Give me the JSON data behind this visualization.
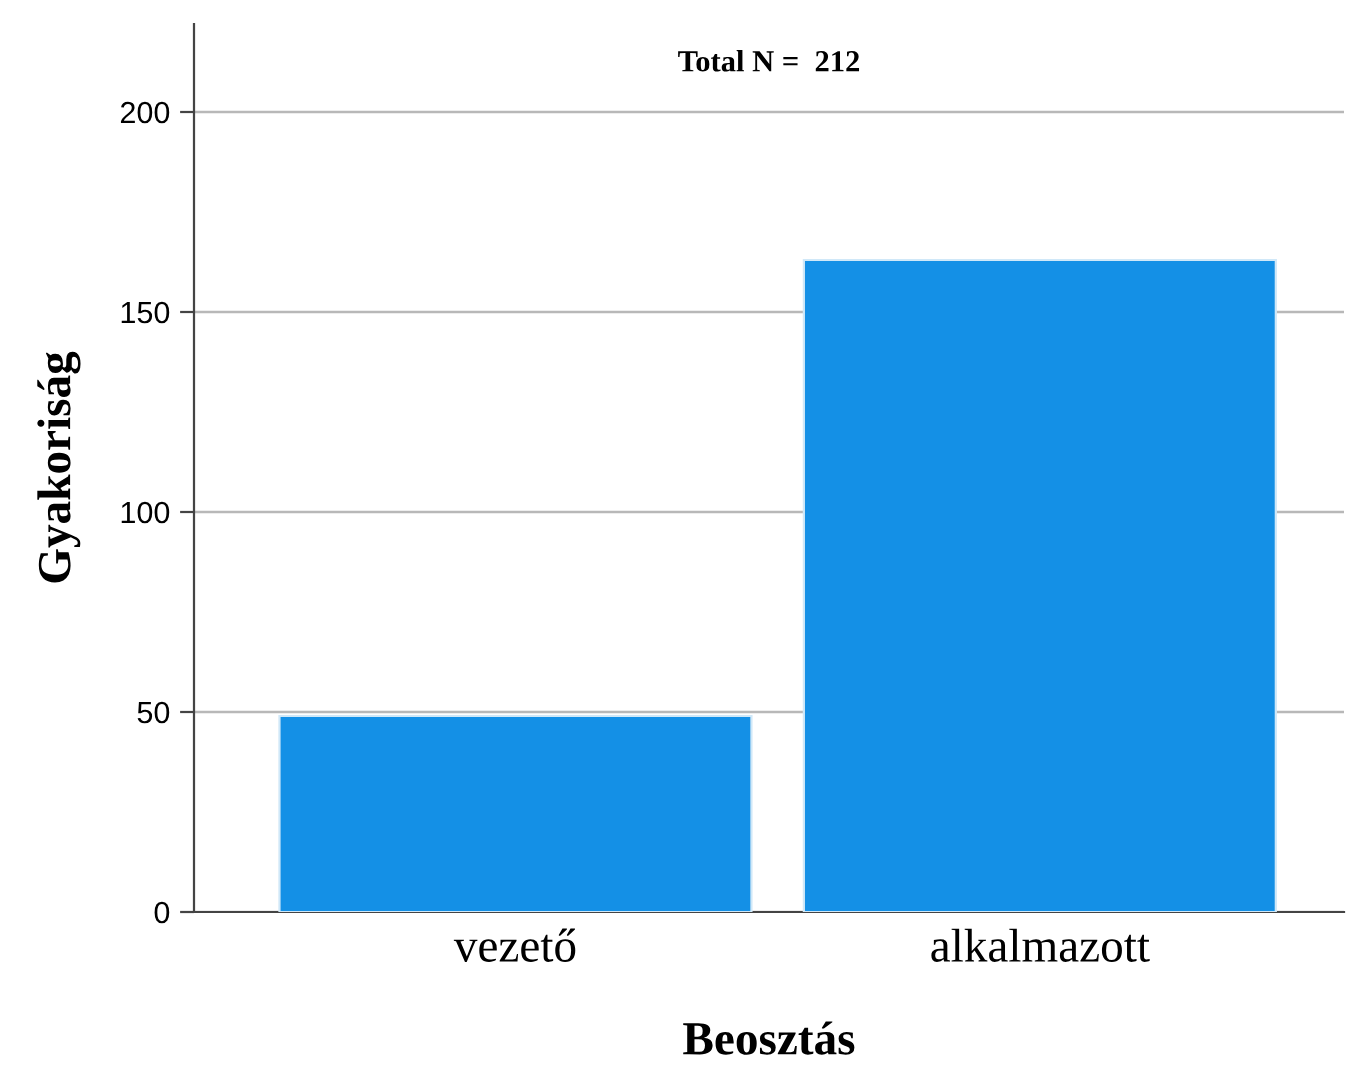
{
  "chart_data": {
    "type": "bar",
    "categories": [
      "vezető",
      "alkalmazott"
    ],
    "values": [
      49,
      163
    ],
    "color": "#1490e6",
    "xlabel": "Beosztás",
    "ylabel": "Gyakoriság",
    "ylim": [
      0,
      222
    ],
    "yticks": [
      0,
      50,
      100,
      150,
      200
    ],
    "grid": "y",
    "legend": false,
    "annotations": [
      "Total N =  212"
    ]
  }
}
